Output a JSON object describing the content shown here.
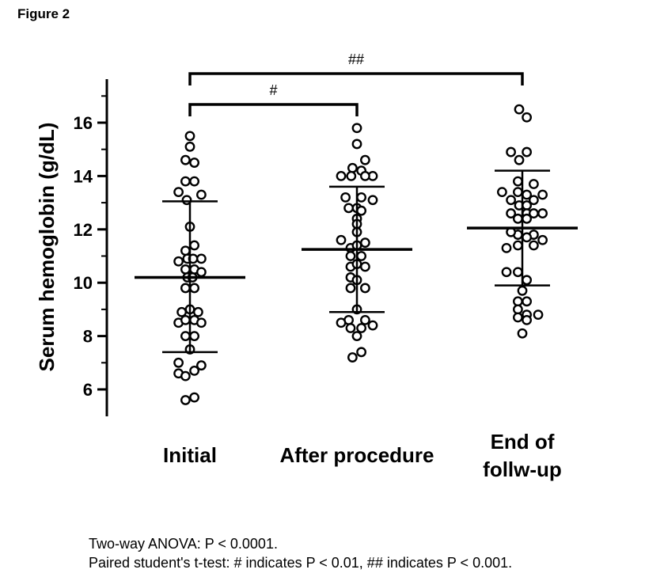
{
  "figure_label": "Figure 2",
  "footnotes": [
    "Two-way ANOVA: P < 0.0001.",
    "Paired student's t-test: # indicates P < 0.01, ## indicates P < 0.001."
  ],
  "chart_data": {
    "type": "scatter",
    "title": "",
    "ylabel": "Serum hemoglobin (g/dL)",
    "xlabel": "",
    "ylim": [
      5,
      17.5
    ],
    "yticks": [
      6,
      8,
      10,
      12,
      14,
      16
    ],
    "grid": false,
    "groups": [
      {
        "label_lines": [
          "Initial"
        ],
        "mean": 10.2,
        "sd_low": 7.4,
        "sd_high": 13.05,
        "points": [
          [
            0,
            15.5
          ],
          [
            0,
            15.1
          ],
          [
            -0.14,
            14.6
          ],
          [
            0.14,
            14.5
          ],
          [
            -0.14,
            13.8
          ],
          [
            0.14,
            13.8
          ],
          [
            -0.36,
            13.4
          ],
          [
            0.36,
            13.3
          ],
          [
            -0.1,
            13.1
          ],
          [
            0,
            12.1
          ],
          [
            0.14,
            11.4
          ],
          [
            -0.14,
            11.2
          ],
          [
            -0.36,
            10.8
          ],
          [
            -0.08,
            10.9
          ],
          [
            0.1,
            10.9
          ],
          [
            0.36,
            10.9
          ],
          [
            -0.14,
            10.5
          ],
          [
            0.14,
            10.5
          ],
          [
            0.36,
            10.4
          ],
          [
            -0.08,
            10.2
          ],
          [
            0.08,
            10.2
          ],
          [
            -0.14,
            9.8
          ],
          [
            0.14,
            9.8
          ],
          [
            -0.26,
            8.9
          ],
          [
            0,
            9.0
          ],
          [
            0.26,
            8.9
          ],
          [
            -0.36,
            8.5
          ],
          [
            -0.14,
            8.6
          ],
          [
            0.14,
            8.6
          ],
          [
            0.36,
            8.5
          ],
          [
            -0.14,
            8.0
          ],
          [
            0.14,
            8.0
          ],
          [
            0,
            7.5
          ],
          [
            -0.36,
            7.0
          ],
          [
            0.36,
            6.9
          ],
          [
            -0.36,
            6.6
          ],
          [
            -0.14,
            6.5
          ],
          [
            0.14,
            6.7
          ],
          [
            -0.14,
            5.6
          ],
          [
            0.14,
            5.7
          ]
        ]
      },
      {
        "label_lines": [
          "After procedure"
        ],
        "mean": 11.25,
        "sd_low": 8.9,
        "sd_high": 13.6,
        "points": [
          [
            0,
            15.8
          ],
          [
            0,
            15.2
          ],
          [
            0.26,
            14.6
          ],
          [
            -0.14,
            14.3
          ],
          [
            0.14,
            14.2
          ],
          [
            -0.5,
            14.0
          ],
          [
            -0.18,
            14.0
          ],
          [
            0.5,
            14.0
          ],
          [
            0.26,
            14.0
          ],
          [
            -0.36,
            13.2
          ],
          [
            0.14,
            13.2
          ],
          [
            0.5,
            13.1
          ],
          [
            -0.26,
            12.8
          ],
          [
            0,
            12.8
          ],
          [
            0.14,
            12.7
          ],
          [
            0,
            12.4
          ],
          [
            0,
            12.2
          ],
          [
            0,
            11.9
          ],
          [
            -0.5,
            11.6
          ],
          [
            0.26,
            11.5
          ],
          [
            -0.2,
            11.3
          ],
          [
            0,
            11.4
          ],
          [
            -0.2,
            11.0
          ],
          [
            0.14,
            11.0
          ],
          [
            -0.2,
            10.6
          ],
          [
            0,
            10.7
          ],
          [
            0.26,
            10.6
          ],
          [
            -0.2,
            10.2
          ],
          [
            0,
            10.1
          ],
          [
            -0.2,
            9.8
          ],
          [
            0.26,
            9.8
          ],
          [
            -0.26,
            8.6
          ],
          [
            0,
            9.0
          ],
          [
            0.26,
            8.6
          ],
          [
            -0.5,
            8.5
          ],
          [
            -0.2,
            8.3
          ],
          [
            0.14,
            8.3
          ],
          [
            0.5,
            8.4
          ],
          [
            0,
            8.0
          ],
          [
            -0.14,
            7.2
          ],
          [
            0.14,
            7.4
          ]
        ]
      },
      {
        "label_lines": [
          "End of",
          "follw-up"
        ],
        "mean": 12.05,
        "sd_low": 9.9,
        "sd_high": 14.2,
        "points": [
          [
            -0.1,
            16.5
          ],
          [
            0.14,
            16.2
          ],
          [
            -0.36,
            14.9
          ],
          [
            0.14,
            14.9
          ],
          [
            -0.1,
            14.6
          ],
          [
            -0.14,
            13.8
          ],
          [
            0.36,
            13.7
          ],
          [
            -0.64,
            13.4
          ],
          [
            -0.14,
            13.4
          ],
          [
            0.14,
            13.3
          ],
          [
            0.64,
            13.3
          ],
          [
            -0.36,
            13.1
          ],
          [
            0.36,
            13.1
          ],
          [
            -0.1,
            12.9
          ],
          [
            0.14,
            12.9
          ],
          [
            -0.36,
            12.6
          ],
          [
            0.14,
            12.6
          ],
          [
            0.36,
            12.6
          ],
          [
            0.64,
            12.6
          ],
          [
            -0.14,
            12.4
          ],
          [
            0.14,
            12.4
          ],
          [
            -0.14,
            11.8
          ],
          [
            0.36,
            11.8
          ],
          [
            -0.36,
            11.9
          ],
          [
            0.14,
            11.7
          ],
          [
            0.64,
            11.6
          ],
          [
            -0.14,
            11.4
          ],
          [
            0.36,
            11.4
          ],
          [
            -0.5,
            11.3
          ],
          [
            0.14,
            10.1
          ],
          [
            -0.5,
            10.4
          ],
          [
            -0.14,
            10.4
          ],
          [
            0,
            9.7
          ],
          [
            -0.14,
            9.3
          ],
          [
            0.14,
            9.3
          ],
          [
            0.14,
            8.8
          ],
          [
            -0.14,
            9.0
          ],
          [
            0.5,
            8.8
          ],
          [
            -0.14,
            8.7
          ],
          [
            0.14,
            8.6
          ],
          [
            0,
            8.1
          ]
        ]
      }
    ],
    "significance_brackets": [
      {
        "from": 0,
        "to": 2,
        "label": "##"
      },
      {
        "from": 0,
        "to": 1,
        "label": "#"
      }
    ]
  }
}
